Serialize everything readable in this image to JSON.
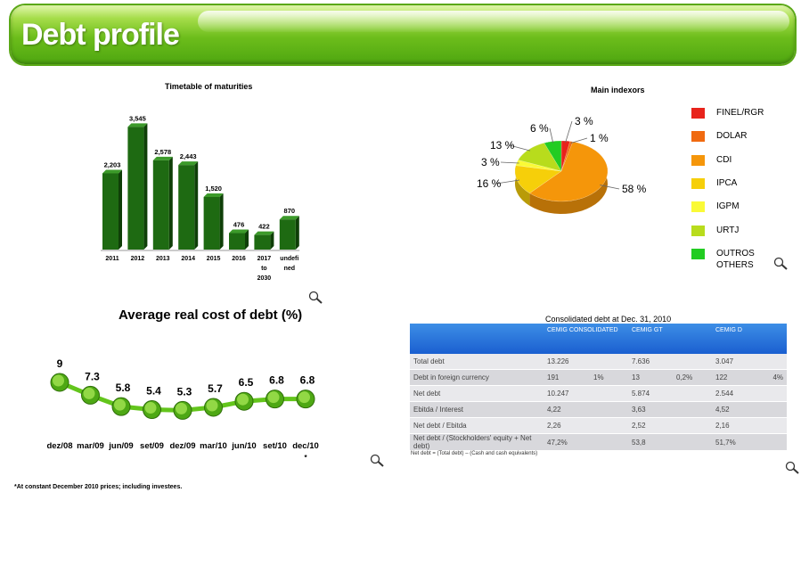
{
  "page": {
    "title": "Debt profile"
  },
  "chart_data": [
    {
      "type": "bar",
      "title": "Timetable of maturities",
      "categories": [
        "2011",
        "2012",
        "2013",
        "2014",
        "2015",
        "2016",
        "2017 to 2030",
        "undefined"
      ],
      "category_labels": [
        [
          "2011"
        ],
        [
          "2012"
        ],
        [
          "2013"
        ],
        [
          "2014"
        ],
        [
          "2015"
        ],
        [
          "2016"
        ],
        [
          "2017",
          "to",
          "2030"
        ],
        [
          "undefi",
          "ned"
        ]
      ],
      "values": [
        2203,
        3545,
        2578,
        2443,
        1520,
        476,
        422,
        870
      ],
      "value_labels": [
        "2,203",
        "3,545",
        "2,578",
        "2,443",
        "1,520",
        "476",
        "422",
        "870"
      ],
      "ylim": [
        0,
        3800
      ],
      "color": "#1e6a12"
    },
    {
      "type": "pie",
      "title": "Main indexors",
      "labels": [
        "FINEL/RGR",
        "DOLAR",
        "CDI",
        "IPCA",
        "IGPM",
        "URTJ",
        "OUTROS\nOTHERS"
      ],
      "values": [
        3,
        1,
        58,
        16,
        3,
        13,
        6
      ],
      "value_labels": [
        "3 %",
        "1 %",
        "58 %",
        "16 %",
        "3 %",
        "13 %",
        "6 %"
      ],
      "colors": [
        "#e8231b",
        "#f06a10",
        "#f5960a",
        "#f6cf0a",
        "#fafa37",
        "#b8dc1c",
        "#22cc22"
      ],
      "legend_position": "right"
    },
    {
      "type": "line",
      "title": "Average real cost of debt (%)",
      "x": [
        "dez/08",
        "mar/09",
        "jun/09",
        "set/09",
        "dez/09",
        "mar/10",
        "jun/10",
        "set/10",
        "dec/10"
      ],
      "values": [
        9,
        7.3,
        5.8,
        5.4,
        5.3,
        5.7,
        6.5,
        6.8,
        6.8
      ],
      "value_labels": [
        "9",
        "7.3",
        "5.8",
        "5.4",
        "5.3",
        "5.7",
        "6.5",
        "6.8",
        "6.8"
      ],
      "x_suffix_mark": "*",
      "color": "#63c51c"
    },
    {
      "type": "table",
      "title": "Consolidated debt at Dec. 31, 2010",
      "columns": [
        "",
        "CEMIG CONSOLIDATED",
        "",
        "CEMIG GT",
        "",
        "CEMIG D",
        ""
      ],
      "rows": [
        [
          "Total debt",
          "13.226",
          "",
          "7.636",
          "",
          "3.047",
          ""
        ],
        [
          "Debt in foreign currency",
          "191",
          "1%",
          "13",
          "0,2%",
          "122",
          "4%"
        ],
        [
          "Net debt",
          "10.247",
          "",
          "5.874",
          "",
          "2.544",
          ""
        ],
        [
          "Ebitda / Interest",
          "4,22",
          "",
          "3,63",
          "",
          "4,52",
          ""
        ],
        [
          "Net debt / Ebitda",
          "2,26",
          "",
          "2,52",
          "",
          "2,16",
          ""
        ],
        [
          "Net debt / (Stockholders' equity + Net debt)",
          "47,2%",
          "",
          "53,8",
          "",
          "51,7%",
          ""
        ]
      ]
    }
  ],
  "notes": {
    "net_debt": "Net debt = (Total debt) – (Cash and cash equivalents)",
    "footnote": "*At constant December 2010 prices; including investees."
  },
  "icons": {
    "zoom": "magnifier-icon"
  }
}
